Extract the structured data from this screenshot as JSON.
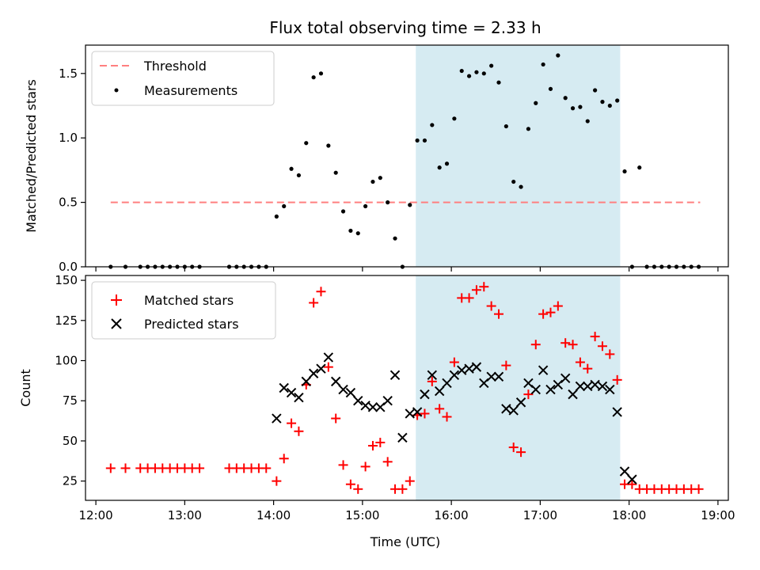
{
  "chart_data": [
    {
      "type": "scatter",
      "title": "Flux total observing time = 2.33 h",
      "xlabel": "",
      "ylabel": "Matched/Predicted stars",
      "ylim": [
        0,
        1.72
      ],
      "yticks": [
        0.0,
        0.5,
        1.0,
        1.5
      ],
      "ytick_labels": [
        "0.0",
        "0.5",
        "1.0",
        "1.5"
      ],
      "legend": {
        "placement": "top-left",
        "entries": [
          "Threshold",
          "Measurements"
        ]
      },
      "threshold": {
        "name": "Threshold",
        "value": 0.5,
        "x_range": [
          "12:10",
          "18:48"
        ],
        "color": "#ff7f7f"
      },
      "shaded_interval": {
        "start": "15:36",
        "end": "17:54",
        "color": "#add8e6"
      },
      "series": [
        {
          "name": "Measurements",
          "color": "#000000",
          "x": [
            "12:10",
            "12:20",
            "12:30",
            "12:35",
            "12:40",
            "12:45",
            "12:50",
            "12:55",
            "13:00",
            "13:05",
            "13:10",
            "13:30",
            "13:35",
            "13:40",
            "13:45",
            "13:50",
            "13:55",
            "14:02",
            "14:07",
            "14:12",
            "14:17",
            "14:22",
            "14:27",
            "14:32",
            "14:37",
            "14:42",
            "14:47",
            "14:52",
            "14:57",
            "15:02",
            "15:07",
            "15:12",
            "15:17",
            "15:22",
            "15:27",
            "15:32",
            "15:37",
            "15:42",
            "15:47",
            "15:52",
            "15:57",
            "16:02",
            "16:07",
            "16:12",
            "16:17",
            "16:22",
            "16:27",
            "16:32",
            "16:37",
            "16:42",
            "16:47",
            "16:52",
            "16:57",
            "17:02",
            "17:07",
            "17:12",
            "17:17",
            "17:22",
            "17:27",
            "17:32",
            "17:37",
            "17:42",
            "17:47",
            "17:52",
            "17:57",
            "18:02",
            "18:07",
            "18:12",
            "18:17",
            "18:22",
            "18:27",
            "18:32",
            "18:37",
            "18:42",
            "18:47"
          ],
          "y": [
            0,
            0,
            0,
            0,
            0,
            0,
            0,
            0,
            0,
            0,
            0,
            0,
            0,
            0,
            0,
            0,
            0,
            0.39,
            0.47,
            0.76,
            0.71,
            0.96,
            1.47,
            1.5,
            0.94,
            0.73,
            0.43,
            0.28,
            0.26,
            0.47,
            0.66,
            0.69,
            0.5,
            0.22,
            0,
            0.48,
            0.98,
            0.98,
            1.1,
            0.77,
            0.8,
            1.15,
            1.52,
            1.48,
            1.51,
            1.5,
            1.56,
            1.43,
            1.09,
            0.66,
            0.62,
            1.07,
            1.27,
            1.57,
            1.38,
            1.64,
            1.31,
            1.23,
            1.24,
            1.13,
            1.37,
            1.28,
            1.25,
            1.29,
            0.74,
            0,
            0.77,
            0,
            0,
            0,
            0,
            0,
            0,
            0,
            0
          ]
        }
      ]
    },
    {
      "type": "scatter",
      "title": "",
      "xlabel": "Time (UTC)",
      "ylabel": "Count",
      "ylim": [
        13,
        153
      ],
      "yticks": [
        25,
        50,
        75,
        100,
        125,
        150
      ],
      "ytick_labels": [
        "25",
        "50",
        "75",
        "100",
        "125",
        "150"
      ],
      "xticks": [
        "12:00",
        "13:00",
        "14:00",
        "15:00",
        "16:00",
        "17:00",
        "18:00",
        "19:00"
      ],
      "xlim": [
        "11:53",
        "19:07"
      ],
      "legend": {
        "placement": "top-left",
        "entries": [
          "Matched stars",
          "Predicted stars"
        ]
      },
      "shaded_interval": {
        "start": "15:36",
        "end": "17:54",
        "color": "#add8e6"
      },
      "series": [
        {
          "name": "Matched stars",
          "marker": "plus",
          "color": "#ff0000",
          "x": [
            "12:10",
            "12:20",
            "12:30",
            "12:35",
            "12:40",
            "12:45",
            "12:50",
            "12:55",
            "13:00",
            "13:05",
            "13:10",
            "13:30",
            "13:35",
            "13:40",
            "13:45",
            "13:50",
            "13:55",
            "14:02",
            "14:07",
            "14:12",
            "14:17",
            "14:22",
            "14:27",
            "14:32",
            "14:37",
            "14:42",
            "14:47",
            "14:52",
            "14:57",
            "15:02",
            "15:07",
            "15:12",
            "15:17",
            "15:22",
            "15:27",
            "15:32",
            "15:37",
            "15:42",
            "15:47",
            "15:52",
            "15:57",
            "16:02",
            "16:07",
            "16:12",
            "16:17",
            "16:22",
            "16:27",
            "16:32",
            "16:37",
            "16:42",
            "16:47",
            "16:52",
            "16:57",
            "17:02",
            "17:07",
            "17:12",
            "17:17",
            "17:22",
            "17:27",
            "17:32",
            "17:37",
            "17:42",
            "17:47",
            "17:52",
            "17:57",
            "18:02",
            "18:07",
            "18:12",
            "18:17",
            "18:22",
            "18:27",
            "18:32",
            "18:37",
            "18:42",
            "18:47"
          ],
          "y": [
            33,
            33,
            33,
            33,
            33,
            33,
            33,
            33,
            33,
            33,
            33,
            33,
            33,
            33,
            33,
            33,
            33,
            25,
            39,
            61,
            56,
            85,
            136,
            143,
            96,
            64,
            35,
            23,
            20,
            34,
            47,
            49,
            37,
            20,
            20,
            25,
            66,
            67,
            87,
            70,
            65,
            99,
            139,
            139,
            144,
            146,
            134,
            129,
            97,
            46,
            43,
            79,
            110,
            129,
            130,
            134,
            111,
            110,
            99,
            95,
            115,
            109,
            104,
            88,
            23,
            23,
            20,
            20,
            20,
            20,
            20,
            20,
            20,
            20,
            20
          ]
        },
        {
          "name": "Predicted stars",
          "marker": "x",
          "color": "#000000",
          "x": [
            "14:02",
            "14:07",
            "14:12",
            "14:17",
            "14:22",
            "14:27",
            "14:32",
            "14:37",
            "14:42",
            "14:47",
            "14:52",
            "14:57",
            "15:02",
            "15:07",
            "15:12",
            "15:17",
            "15:22",
            "15:27",
            "15:32",
            "15:37",
            "15:42",
            "15:47",
            "15:52",
            "15:57",
            "16:02",
            "16:07",
            "16:12",
            "16:17",
            "16:22",
            "16:27",
            "16:32",
            "16:37",
            "16:42",
            "16:47",
            "16:52",
            "16:57",
            "17:02",
            "17:07",
            "17:12",
            "17:17",
            "17:22",
            "17:27",
            "17:32",
            "17:37",
            "17:42",
            "17:47",
            "17:52",
            "17:57",
            "18:02"
          ],
          "y": [
            64,
            83,
            80,
            77,
            87,
            92,
            95,
            102,
            87,
            82,
            80,
            75,
            72,
            71,
            71,
            75,
            91,
            52,
            67,
            68,
            79,
            91,
            81,
            86,
            91,
            94,
            95,
            96,
            86,
            90,
            90,
            70,
            69,
            74,
            86,
            82,
            94,
            82,
            85,
            89,
            79,
            84,
            84,
            85,
            84,
            82,
            68,
            31,
            26
          ]
        }
      ]
    }
  ]
}
